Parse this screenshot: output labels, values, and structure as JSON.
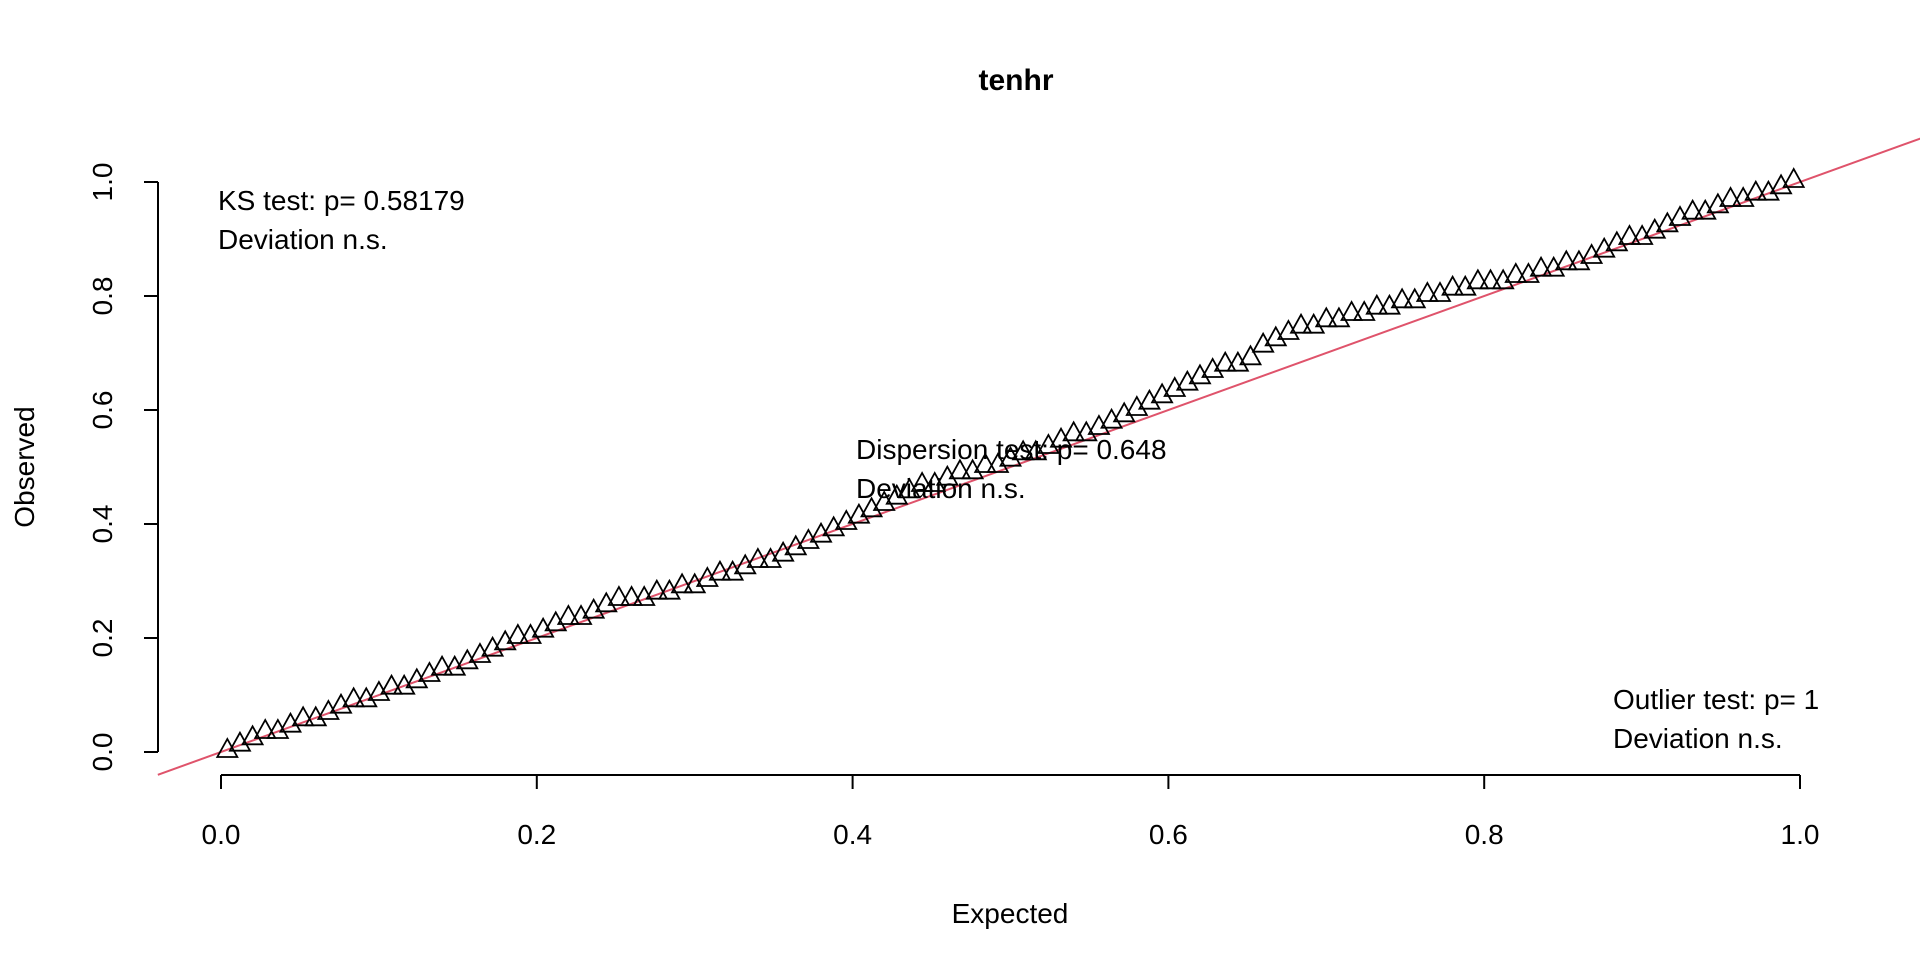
{
  "chart_data": {
    "type": "scatter",
    "title": "tenhr",
    "xlabel": "Expected",
    "ylabel": "Observed",
    "xlim": [
      0.0,
      1.0
    ],
    "ylim": [
      0.0,
      1.0
    ],
    "x_ticks": [
      "0.0",
      "0.2",
      "0.4",
      "0.6",
      "0.8",
      "1.0"
    ],
    "y_ticks": [
      "0.0",
      "0.2",
      "0.4",
      "0.6",
      "0.8",
      "1.0"
    ],
    "grid": false,
    "marker": "open-triangle",
    "reference_line": {
      "slope": 1,
      "intercept": 0,
      "color": "#DF536B"
    },
    "annotations": {
      "ks": {
        "line1": "KS test: p= 0.58179",
        "line2": "Deviation  n.s."
      },
      "dispersion": {
        "line1": "Dispersion test: p= 0.648",
        "line2": "Deviation  n.s."
      },
      "outlier": {
        "line1": "Outlier test: p= 1",
        "line2": "Deviation  n.s."
      }
    },
    "breakpoints": [
      [
        0.0,
        0.0
      ],
      [
        0.05,
        0.05
      ],
      [
        0.1,
        0.1
      ],
      [
        0.15,
        0.15
      ],
      [
        0.2,
        0.21
      ],
      [
        0.25,
        0.26
      ],
      [
        0.3,
        0.29
      ],
      [
        0.35,
        0.34
      ],
      [
        0.4,
        0.41
      ],
      [
        0.45,
        0.47
      ],
      [
        0.5,
        0.51
      ],
      [
        0.55,
        0.56
      ],
      [
        0.6,
        0.63
      ],
      [
        0.65,
        0.69
      ],
      [
        0.68,
        0.74
      ],
      [
        0.75,
        0.79
      ],
      [
        0.8,
        0.82
      ],
      [
        0.85,
        0.85
      ],
      [
        0.88,
        0.88
      ],
      [
        0.92,
        0.93
      ],
      [
        1.0,
        1.0
      ]
    ],
    "n_points": 125
  }
}
